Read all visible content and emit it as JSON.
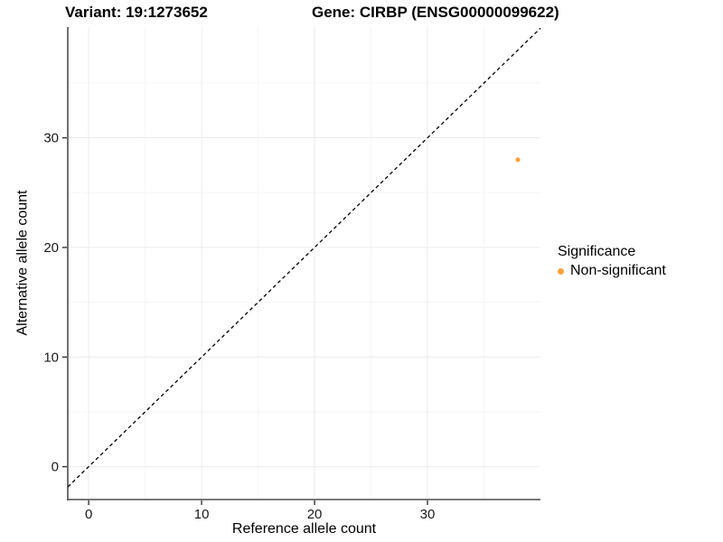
{
  "chart_data": {
    "type": "scatter",
    "title_left": "Variant: 19:1273652",
    "title_right": "Gene: CIRBP (ENSG00000099622)",
    "xlabel": "Reference allele count",
    "ylabel": "Alternative allele count",
    "xlim": [
      -1.85,
      40
    ],
    "ylim": [
      -3,
      40.1
    ],
    "x_ticks": [
      0,
      10,
      20,
      30
    ],
    "y_ticks": [
      0,
      10,
      20,
      30
    ],
    "x_minor_ticks": [
      5,
      15,
      25,
      35
    ],
    "y_minor_ticks": [
      5,
      15,
      25,
      35
    ],
    "grid": "major+minor",
    "points": [
      {
        "x": 38,
        "y": 28,
        "series": "Non-significant"
      }
    ],
    "reference_line": {
      "slope": 1,
      "intercept": 0,
      "style": "dashed",
      "color": "#000000"
    },
    "legend": {
      "title": "Significance",
      "position": "right",
      "entries": [
        {
          "label": "Non-significant",
          "color": "#F9A23B"
        }
      ]
    },
    "colors": {
      "point": "#F9A23B",
      "grid_major": "#ECECEC",
      "grid_minor": "#F5F5F5",
      "axis_line": "#4D4D4D",
      "tick": "#333333",
      "text": "#000000"
    }
  }
}
